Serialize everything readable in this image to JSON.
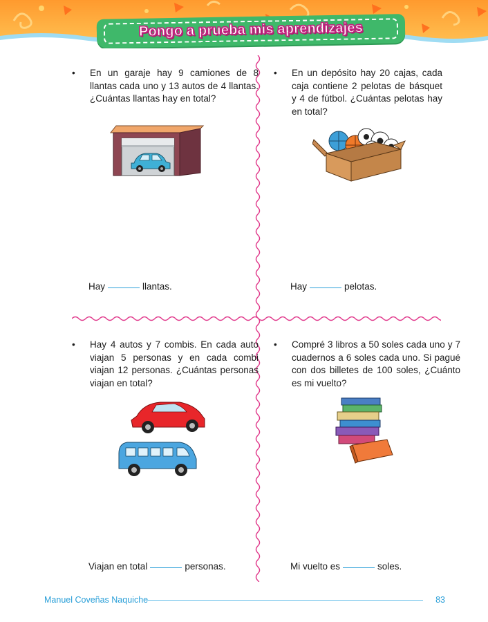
{
  "header": {
    "title": "Pongo a prueba mis aprendizajes"
  },
  "problems": [
    {
      "bullet": "•",
      "text": "En un garaje hay 9 camiones de 8 llantas cada uno y 13 autos de 4 llantas. ¿Cuántas llantas hay en total?",
      "answer_before": "Hay",
      "answer_after": "llantas.",
      "icon": "garage-with-car-icon"
    },
    {
      "bullet": "•",
      "text": "En un depósito hay 20 cajas, cada caja contiene 2 pelotas de básquet y 4 de fútbol. ¿Cuántas pelotas hay en total?",
      "answer_before": "Hay",
      "answer_after": "pelotas.",
      "icon": "box-of-balls-icon"
    },
    {
      "bullet": "•",
      "text": "Hay 4 autos y 7 combis. En cada auto viajan 5 personas y en cada combi viajan 12 personas. ¿Cuántas personas viajan en total?",
      "answer_before": "Viajan en total",
      "answer_after": "personas.",
      "icon": "car-and-van-icon"
    },
    {
      "bullet": "•",
      "text": "Compré 3 libros a 50 soles cada uno y 7 cuadernos a 6 soles cada uno. Si pagué con dos billetes de 100 soles, ¿Cuánto es mi vuelto?",
      "answer_before": "Mi vuelto es",
      "answer_after": "soles.",
      "icon": "stack-of-books-icon"
    }
  ],
  "footer": {
    "author": "Manuel Coveñas Naquiche",
    "page_number": "83"
  },
  "colors": {
    "header_orange": "#ff9a2e",
    "title_green": "#3fb86a",
    "title_outline": "#c2237f",
    "divider_pink": "#e0368a",
    "blank_line_blue": "#2a9fd8",
    "footer_blue": "#2a9fd8"
  }
}
